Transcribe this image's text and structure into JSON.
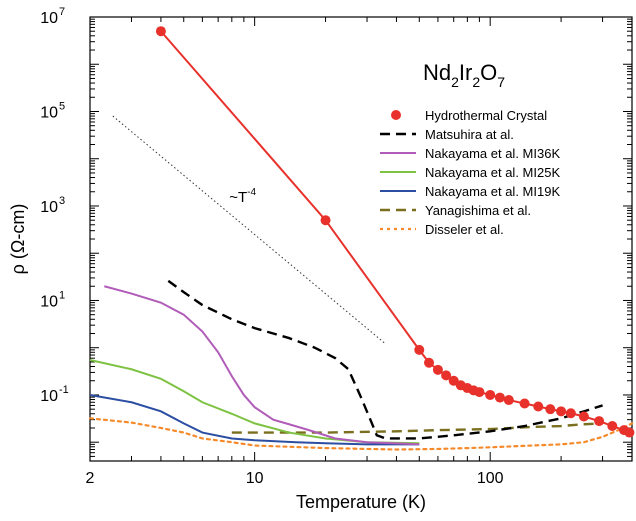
{
  "chart_data": {
    "type": "line",
    "title": "",
    "xlabel": "Temperature (K)",
    "ylabel": "ρ (Ω-cm)",
    "xscale": "log",
    "yscale": "log",
    "xlim": [
      2,
      400
    ],
    "ylim": [
      0.004,
      10000000
    ],
    "x_ticks": [
      {
        "value": 2,
        "label": "2"
      },
      {
        "value": 10,
        "label": "10"
      },
      {
        "value": 100,
        "label": "100"
      }
    ],
    "y_ticks": [
      {
        "value": 0.1,
        "base": "10",
        "exp": "-1"
      },
      {
        "value": 10,
        "base": "10",
        "exp": "1"
      },
      {
        "value": 1000,
        "base": "10",
        "exp": "3"
      },
      {
        "value": 100000,
        "base": "10",
        "exp": "5"
      },
      {
        "value": 10000000,
        "base": "10",
        "exp": "7"
      }
    ],
    "grid": false,
    "legend_position": "right",
    "compound": {
      "parts": [
        {
          "t": "Nd",
          "sub": false
        },
        {
          "t": "2",
          "sub": true
        },
        {
          "t": "Ir",
          "sub": false
        },
        {
          "t": "2",
          "sub": true
        },
        {
          "t": "O",
          "sub": false
        },
        {
          "t": "7",
          "sub": true
        }
      ]
    },
    "annotation": {
      "text": "~T",
      "sup": "-4",
      "x": 7.8,
      "y": 1200
    },
    "guide_line": {
      "points": [
        [
          2.5,
          80000
        ],
        [
          36,
          1.2
        ]
      ],
      "color": "#333333"
    },
    "series": [
      {
        "name": "Hydrothermal Crystal",
        "color": "#e8312b",
        "style": "line-marker",
        "points": [
          [
            4,
            5000000
          ],
          [
            20,
            500
          ],
          [
            50,
            0.9
          ],
          [
            55,
            0.48
          ],
          [
            60,
            0.34
          ],
          [
            65,
            0.26
          ],
          [
            70,
            0.2
          ],
          [
            75,
            0.16
          ],
          [
            80,
            0.14
          ],
          [
            85,
            0.125
          ],
          [
            90,
            0.115
          ],
          [
            100,
            0.1
          ],
          [
            110,
            0.088
          ],
          [
            120,
            0.078
          ],
          [
            140,
            0.066
          ],
          [
            160,
            0.057
          ],
          [
            180,
            0.05
          ],
          [
            200,
            0.045
          ],
          [
            220,
            0.041
          ],
          [
            250,
            0.035
          ],
          [
            290,
            0.028
          ],
          [
            330,
            0.022
          ],
          [
            370,
            0.018
          ],
          [
            390,
            0.016
          ]
        ],
        "markers": [
          [
            4,
            5000000
          ],
          [
            20,
            500
          ],
          [
            50,
            0.9
          ],
          [
            55,
            0.48
          ],
          [
            60,
            0.34
          ],
          [
            65,
            0.26
          ],
          [
            70,
            0.2
          ],
          [
            75,
            0.16
          ],
          [
            80,
            0.14
          ],
          [
            85,
            0.125
          ],
          [
            90,
            0.115
          ],
          [
            100,
            0.1
          ],
          [
            110,
            0.088
          ],
          [
            120,
            0.078
          ],
          [
            140,
            0.066
          ],
          [
            160,
            0.057
          ],
          [
            180,
            0.05
          ],
          [
            200,
            0.045
          ],
          [
            220,
            0.041
          ],
          [
            250,
            0.035
          ],
          [
            290,
            0.028
          ],
          [
            330,
            0.022
          ],
          [
            370,
            0.018
          ],
          [
            390,
            0.016
          ]
        ]
      },
      {
        "name": "Matsuhira at al.",
        "color": "#000000",
        "style": "dash",
        "points": [
          [
            4.3,
            26
          ],
          [
            5,
            15
          ],
          [
            6,
            8
          ],
          [
            8,
            4
          ],
          [
            10,
            2.6
          ],
          [
            14,
            1.6
          ],
          [
            18,
            1.0
          ],
          [
            22,
            0.6
          ],
          [
            25,
            0.35
          ],
          [
            28,
            0.1
          ],
          [
            31,
            0.03
          ],
          [
            33,
            0.014
          ],
          [
            36,
            0.012
          ],
          [
            50,
            0.012
          ],
          [
            70,
            0.014
          ],
          [
            100,
            0.017
          ],
          [
            140,
            0.022
          ],
          [
            200,
            0.032
          ],
          [
            250,
            0.045
          ],
          [
            300,
            0.06
          ]
        ]
      },
      {
        "name": "Nakayama et al. MI36K",
        "color": "#b05cb8",
        "style": "solid",
        "points": [
          [
            2.3,
            20
          ],
          [
            3,
            14
          ],
          [
            4,
            9
          ],
          [
            5,
            5
          ],
          [
            6,
            2.2
          ],
          [
            7,
            0.8
          ],
          [
            8,
            0.25
          ],
          [
            9,
            0.1
          ],
          [
            10,
            0.055
          ],
          [
            12,
            0.03
          ],
          [
            14,
            0.024
          ],
          [
            17,
            0.018
          ],
          [
            22,
            0.012
          ],
          [
            30,
            0.01
          ],
          [
            50,
            0.009
          ]
        ]
      },
      {
        "name": "Nakayama et al. MI25K",
        "color": "#7dc242",
        "style": "solid",
        "points": [
          [
            2,
            0.55
          ],
          [
            3,
            0.35
          ],
          [
            4,
            0.22
          ],
          [
            5,
            0.12
          ],
          [
            6,
            0.07
          ],
          [
            8,
            0.04
          ],
          [
            10,
            0.025
          ],
          [
            14,
            0.016
          ],
          [
            20,
            0.012
          ],
          [
            30,
            0.01
          ],
          [
            50,
            0.0095
          ]
        ]
      },
      {
        "name": "Nakayama et al. MI19K",
        "color": "#2b4ea2",
        "style": "solid",
        "points": [
          [
            2,
            0.1
          ],
          [
            3,
            0.07
          ],
          [
            4,
            0.045
          ],
          [
            5,
            0.025
          ],
          [
            6,
            0.016
          ],
          [
            8,
            0.012
          ],
          [
            10,
            0.011
          ],
          [
            15,
            0.01
          ],
          [
            20,
            0.0095
          ],
          [
            30,
            0.009
          ],
          [
            50,
            0.009
          ]
        ]
      },
      {
        "name": "Yanagishima et al.",
        "color": "#7a6f1e",
        "style": "dash",
        "points": [
          [
            8,
            0.016
          ],
          [
            10,
            0.016
          ],
          [
            20,
            0.016
          ],
          [
            40,
            0.017
          ],
          [
            60,
            0.018
          ],
          [
            100,
            0.019
          ],
          [
            150,
            0.021
          ],
          [
            200,
            0.022
          ],
          [
            250,
            0.024
          ],
          [
            300,
            0.025
          ]
        ]
      },
      {
        "name": "Disseler et al.",
        "color": "#f58a2b",
        "style": "dot",
        "points": [
          [
            2,
            0.032
          ],
          [
            3,
            0.026
          ],
          [
            4,
            0.02
          ],
          [
            5,
            0.016
          ],
          [
            6,
            0.012
          ],
          [
            8,
            0.01
          ],
          [
            10,
            0.0085
          ],
          [
            20,
            0.0075
          ],
          [
            40,
            0.007
          ],
          [
            60,
            0.0072
          ],
          [
            80,
            0.0075
          ],
          [
            100,
            0.0078
          ],
          [
            150,
            0.0085
          ],
          [
            200,
            0.009
          ],
          [
            250,
            0.01
          ],
          [
            300,
            0.013
          ],
          [
            350,
            0.018
          ],
          [
            400,
            0.025
          ]
        ]
      }
    ]
  }
}
